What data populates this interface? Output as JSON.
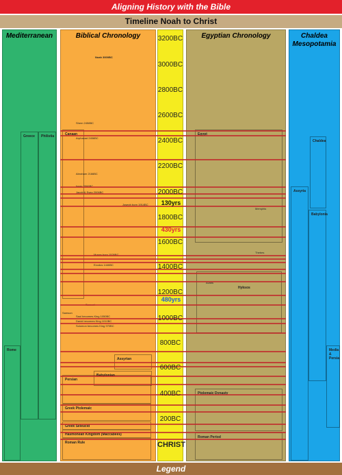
{
  "header": {
    "title": "Aligning History with the Bible",
    "subtitle": "Timeline Noah to Christ"
  },
  "columns": [
    {
      "title": "Mediterranean"
    },
    {
      "title": "Biblical Chronology"
    },
    {
      "title": "Egyptian Chronology"
    },
    {
      "title": "Chaldea Mesopotamia"
    }
  ],
  "timeline": {
    "labels": [
      "3200BC",
      "3000BC",
      "2800BC",
      "2600BC",
      "2400BC",
      "2200BC",
      "2000BC",
      "1800BC",
      "1600BC",
      "1400BC",
      "1200BC",
      "1000BC",
      "800BC",
      "600BC",
      "400BC",
      "200BC",
      "CHRIST"
    ],
    "spans": [
      "130yrs",
      "430yrs",
      "480yrs"
    ]
  },
  "mediterranean": [
    "Greece",
    "Philistia",
    "Rome"
  ],
  "biblical": {
    "items": [
      "Noah 3000BC",
      "Shem 2458BC",
      "Arphaxad 2456BC",
      "Abraham 2166BC",
      "Isaac 2066BC",
      "Jacob & Esau 2006BC",
      "Joseph born 1914BC",
      "Moses born 1526BC",
      "Exodus 1446BC",
      "Samson",
      "Samuel",
      "Saul becomes King 1050BC",
      "David becomes King 1010BC",
      "Solomon becomes King 970BC"
    ],
    "boxes": [
      "Canaan",
      "Assyrian",
      "Babylonian",
      "Persian",
      "Greek Ptolemaic",
      "Greek Seleucid",
      "Hasmonean Kingdom (Maccabees)",
      "Roman Rule"
    ]
  },
  "egyptian": [
    "Egypt",
    "Memphis",
    "Thebes",
    "Hyksos",
    "Avaris",
    "Ptolemaic Dynasty",
    "Roman Period"
  ],
  "chaldea": [
    "Chaldea",
    "Assyria",
    "Babylonia",
    "Media & Persia"
  ],
  "legend": "Legend"
}
